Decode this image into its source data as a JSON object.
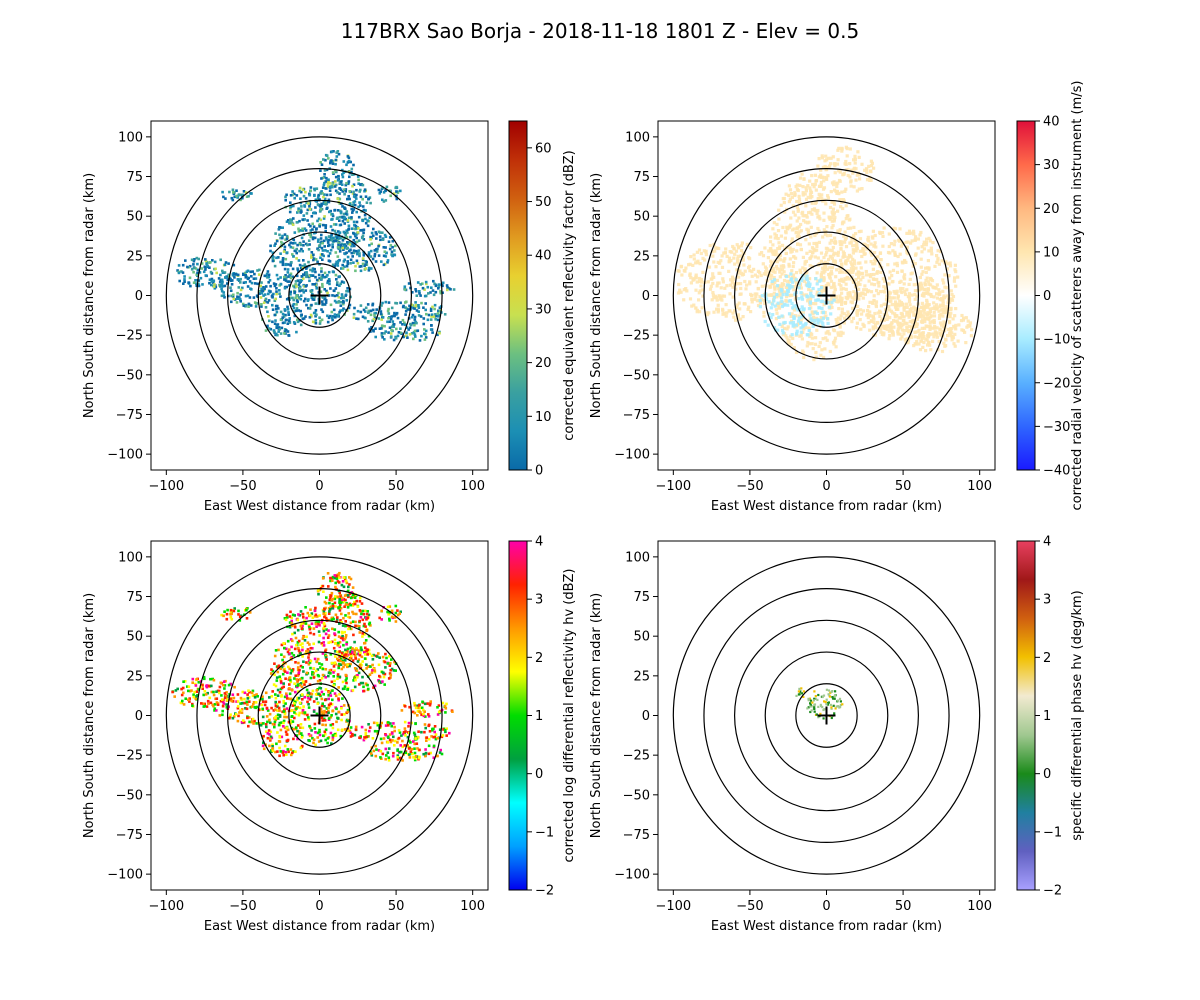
{
  "figure": {
    "title": "117BRX Sao Borja - 2018-11-18 1801 Z -  Elev = 0.5"
  },
  "chart_data": [
    {
      "type": "heatmap",
      "field": "reflectivity",
      "xlabel": "East West distance from radar (km)",
      "ylabel": "North South distance from radar (km)",
      "xlim": [
        -110,
        110
      ],
      "ylim": [
        -110,
        110
      ],
      "xticks": [
        -100,
        -50,
        0,
        50,
        100
      ],
      "yticks": [
        -100,
        -75,
        -50,
        -25,
        0,
        25,
        50,
        75,
        100
      ],
      "range_rings_km": [
        20,
        40,
        60,
        80,
        100
      ],
      "colorbar": {
        "label": "corrected equivalent reflectivity factor (dBZ)",
        "min": 0,
        "max": 65,
        "ticks": [
          0,
          10,
          20,
          30,
          40,
          50,
          60
        ]
      }
    },
    {
      "type": "heatmap",
      "field": "velocity",
      "xlabel": "East West distance from radar (km)",
      "ylabel": "North South distance from radar (km)",
      "xlim": [
        -110,
        110
      ],
      "ylim": [
        -110,
        110
      ],
      "xticks": [
        -100,
        -50,
        0,
        50,
        100
      ],
      "yticks": [
        -100,
        -75,
        -50,
        -25,
        0,
        25,
        50,
        75,
        100
      ],
      "range_rings_km": [
        20,
        40,
        60,
        80,
        100
      ],
      "colorbar": {
        "label": "corrected radial velocity of scatterers away from instrument (m/s)",
        "min": -40,
        "max": 40,
        "ticks": [
          -40,
          -30,
          -20,
          -10,
          0,
          10,
          20,
          30,
          40
        ]
      }
    },
    {
      "type": "heatmap",
      "field": "differential_reflectivity",
      "xlabel": "East West distance from radar (km)",
      "ylabel": "North South distance from radar (km)",
      "xlim": [
        -110,
        110
      ],
      "ylim": [
        -110,
        110
      ],
      "xticks": [
        -100,
        -50,
        0,
        50,
        100
      ],
      "yticks": [
        -100,
        -75,
        -50,
        -25,
        0,
        25,
        50,
        75,
        100
      ],
      "range_rings_km": [
        20,
        40,
        60,
        80,
        100
      ],
      "colorbar": {
        "label": "corrected log differential reflectivity hv (dBZ)",
        "min": -2,
        "max": 4,
        "ticks": [
          -2,
          -1,
          0,
          1,
          2,
          3,
          4
        ]
      }
    },
    {
      "type": "heatmap",
      "field": "specific_differential_phase",
      "xlabel": "East West distance from radar (km)",
      "ylabel": "North South distance from radar (km)",
      "xlim": [
        -110,
        110
      ],
      "ylim": [
        -110,
        110
      ],
      "xticks": [
        -100,
        -50,
        0,
        50,
        100
      ],
      "yticks": [
        -100,
        -75,
        -50,
        -25,
        0,
        25,
        50,
        75,
        100
      ],
      "range_rings_km": [
        20,
        40,
        60,
        80,
        100
      ],
      "colorbar": {
        "label": "specific differential phase hv (deg/km)",
        "min": -2,
        "max": 4,
        "ticks": [
          -2,
          -1,
          0,
          1,
          2,
          3,
          4
        ]
      }
    }
  ],
  "colors": {
    "reflectivity": [
      "#0a6aa8",
      "#1c8fb4",
      "#3aa0a0",
      "#6cc080",
      "#c8e050",
      "#e8d030",
      "#e09a20",
      "#d06010",
      "#c03008",
      "#a00000"
    ],
    "velocity": [
      "#1a1aff",
      "#2f66ff",
      "#59b0ff",
      "#a8ecff",
      "#ffffff",
      "#ffe6b0",
      "#ffb880",
      "#ff6a4a",
      "#e0103a"
    ],
    "differential_reflectivity": [
      "#0000ee",
      "#00a0ff",
      "#00ffff",
      "#00a040",
      "#00dd00",
      "#ffff00",
      "#ff9900",
      "#ff2200",
      "#ff00aa"
    ],
    "specific_differential_phase": [
      "#a8a0ff",
      "#6060c0",
      "#2080a0",
      "#1a8a1a",
      "#a0c890",
      "#f2ead0",
      "#f2c000",
      "#d06010",
      "#a01818",
      "#e84060"
    ],
    "grid": "#000000"
  }
}
